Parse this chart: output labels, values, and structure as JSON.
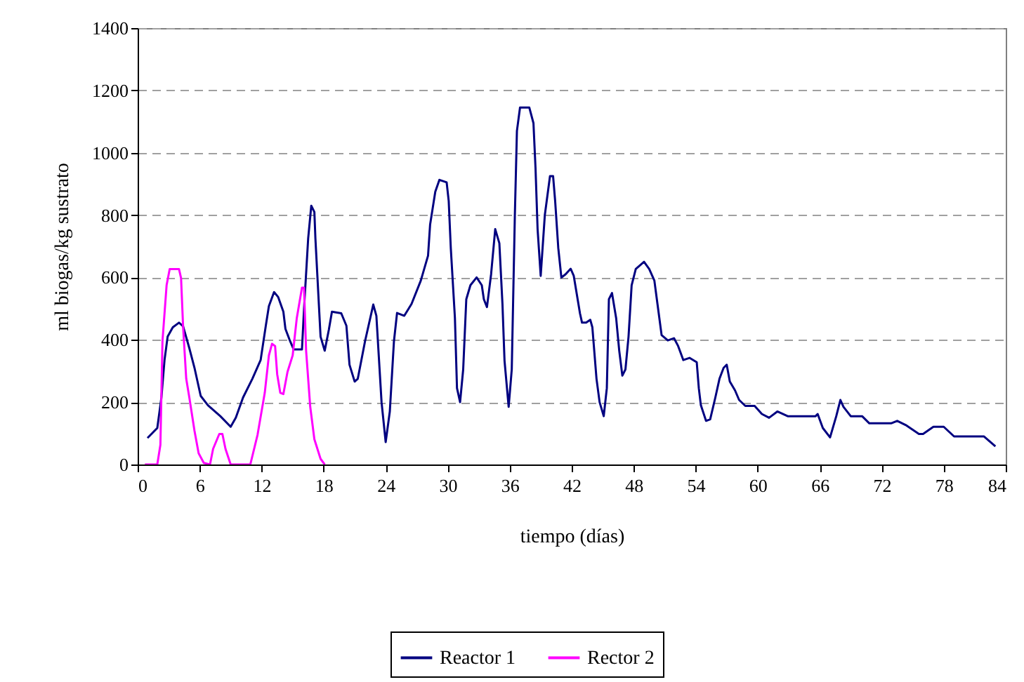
{
  "chart_data": {
    "type": "line",
    "xlabel": "tiempo (días)",
    "ylabel": "ml biogas/kg sustrato",
    "xlim": [
      0,
      84
    ],
    "xticks": [
      0,
      6,
      12,
      18,
      24,
      30,
      36,
      42,
      48,
      54,
      60,
      66,
      72,
      78,
      84
    ],
    "ylim": [
      0,
      1400
    ],
    "yticks": [
      0,
      200,
      400,
      600,
      800,
      1000,
      1200,
      1400
    ],
    "grid": "y",
    "legend": "bottom",
    "marker": "none",
    "line_style": "solid",
    "series": [
      {
        "name": "Reactor 1",
        "color": "#000080",
        "x": [
          0.95,
          1.9,
          2.3,
          2.6,
          2.9,
          3.4,
          4,
          4.4,
          5,
          5.5,
          6.1,
          6.8,
          8,
          9,
          9.5,
          10.2,
          11.1,
          11.9,
          12.4,
          12.7,
          13.2,
          13.6,
          14.1,
          14.3,
          14.7,
          15.1,
          15.9,
          16.1,
          16.5,
          16.8,
          17.1,
          17.2,
          17.7,
          18.1,
          18.5,
          18.8,
          19.7,
          20.2,
          20.5,
          21,
          21.3,
          22,
          22.8,
          23.1,
          23.6,
          24,
          24.4,
          24.8,
          25.1,
          25.8,
          26.5,
          27.4,
          28.1,
          28.3,
          28.8,
          29.2,
          29.9,
          30.1,
          30.3,
          30.7,
          30.9,
          31.2,
          31.5,
          31.8,
          32.2,
          32.8,
          33.3,
          33.5,
          33.8,
          34.2,
          34.6,
          35,
          35.3,
          35.5,
          35.9,
          36.2,
          36.5,
          36.7,
          37,
          37.9,
          38.3,
          38.5,
          38.7,
          39,
          39.4,
          39.9,
          40.2,
          40.4,
          40.7,
          41,
          41.4,
          41.9,
          42.2,
          42.8,
          43,
          43.4,
          43.8,
          44,
          44.4,
          44.7,
          45.1,
          45.4,
          45.6,
          45.9,
          46.3,
          46.6,
          46.9,
          47.2,
          47.5,
          47.8,
          48.2,
          49,
          49.5,
          50,
          50.3,
          50.7,
          51.3,
          51.9,
          52.3,
          52.8,
          53.4,
          54.1,
          54.3,
          54.5,
          55,
          55.4,
          55.9,
          56.3,
          56.7,
          57,
          57.3,
          57.8,
          58.2,
          58.8,
          59.7,
          60.4,
          61.1,
          61.9,
          62.9,
          65.6,
          65.8,
          66.3,
          67,
          67.6,
          68,
          68.3,
          69,
          70.1,
          70.8,
          72.9,
          73.5,
          74.4,
          75.6,
          76,
          77,
          78,
          79,
          81.9,
          83
        ],
        "values": [
          85,
          117,
          215,
          335,
          410,
          440,
          455,
          443,
          373,
          310,
          220,
          190,
          155,
          121,
          150,
          215,
          275,
          335,
          445,
          508,
          553,
          537,
          490,
          435,
          400,
          369,
          369,
          500,
          725,
          830,
          810,
          725,
          410,
          365,
          432,
          490,
          485,
          445,
          320,
          266,
          275,
          395,
          513,
          477,
          200,
          72,
          170,
          395,
          486,
          477,
          515,
          590,
          670,
          770,
          875,
          913,
          905,
          845,
          695,
          470,
          245,
          200,
          305,
          530,
          575,
          600,
          575,
          530,
          505,
          610,
          755,
          710,
          515,
          333,
          185,
          305,
          800,
          1070,
          1145,
          1145,
          1095,
          950,
          755,
          605,
          800,
          925,
          925,
          845,
          695,
          600,
          610,
          628,
          605,
          485,
          455,
          455,
          464,
          440,
          275,
          200,
          155,
          245,
          530,
          550,
          470,
          365,
          285,
          305,
          410,
          575,
          627,
          650,
          627,
          590,
          515,
          415,
          398,
          405,
          380,
          335,
          342,
          328,
          245,
          190,
          140,
          145,
          215,
          275,
          310,
          320,
          266,
          238,
          207,
          188,
          188,
          162,
          150,
          170,
          155,
          155,
          162,
          117,
          87,
          155,
          207,
          185,
          155,
          155,
          132,
          132,
          140,
          125,
          98,
          98,
          121,
          121,
          90,
          90,
          58
        ]
      },
      {
        "name": "Rector 2",
        "color": "#ff00ff",
        "x": [
          0.7,
          1.9,
          2.2,
          2.4,
          2.8,
          3.1,
          4,
          4.2,
          4.4,
          4.7,
          5,
          5.5,
          5.9,
          6.4,
          7,
          7.3,
          7.9,
          8.2,
          8.5,
          9,
          10.9,
          11.6,
          12.3,
          12.7,
          13,
          13.3,
          13.5,
          13.8,
          14.1,
          14.5,
          15,
          15.4,
          15.9,
          16.1,
          16.3,
          16.7,
          17.1,
          17.7,
          18.1
        ],
        "values": [
          0,
          0,
          63,
          395,
          575,
          627,
          627,
          598,
          440,
          275,
          215,
          108,
          36,
          5,
          0,
          50,
          98,
          98,
          50,
          0,
          0,
          95,
          230,
          350,
          387,
          380,
          290,
          230,
          226,
          297,
          350,
          470,
          567,
          567,
          365,
          185,
          81,
          18,
          0
        ]
      }
    ]
  }
}
